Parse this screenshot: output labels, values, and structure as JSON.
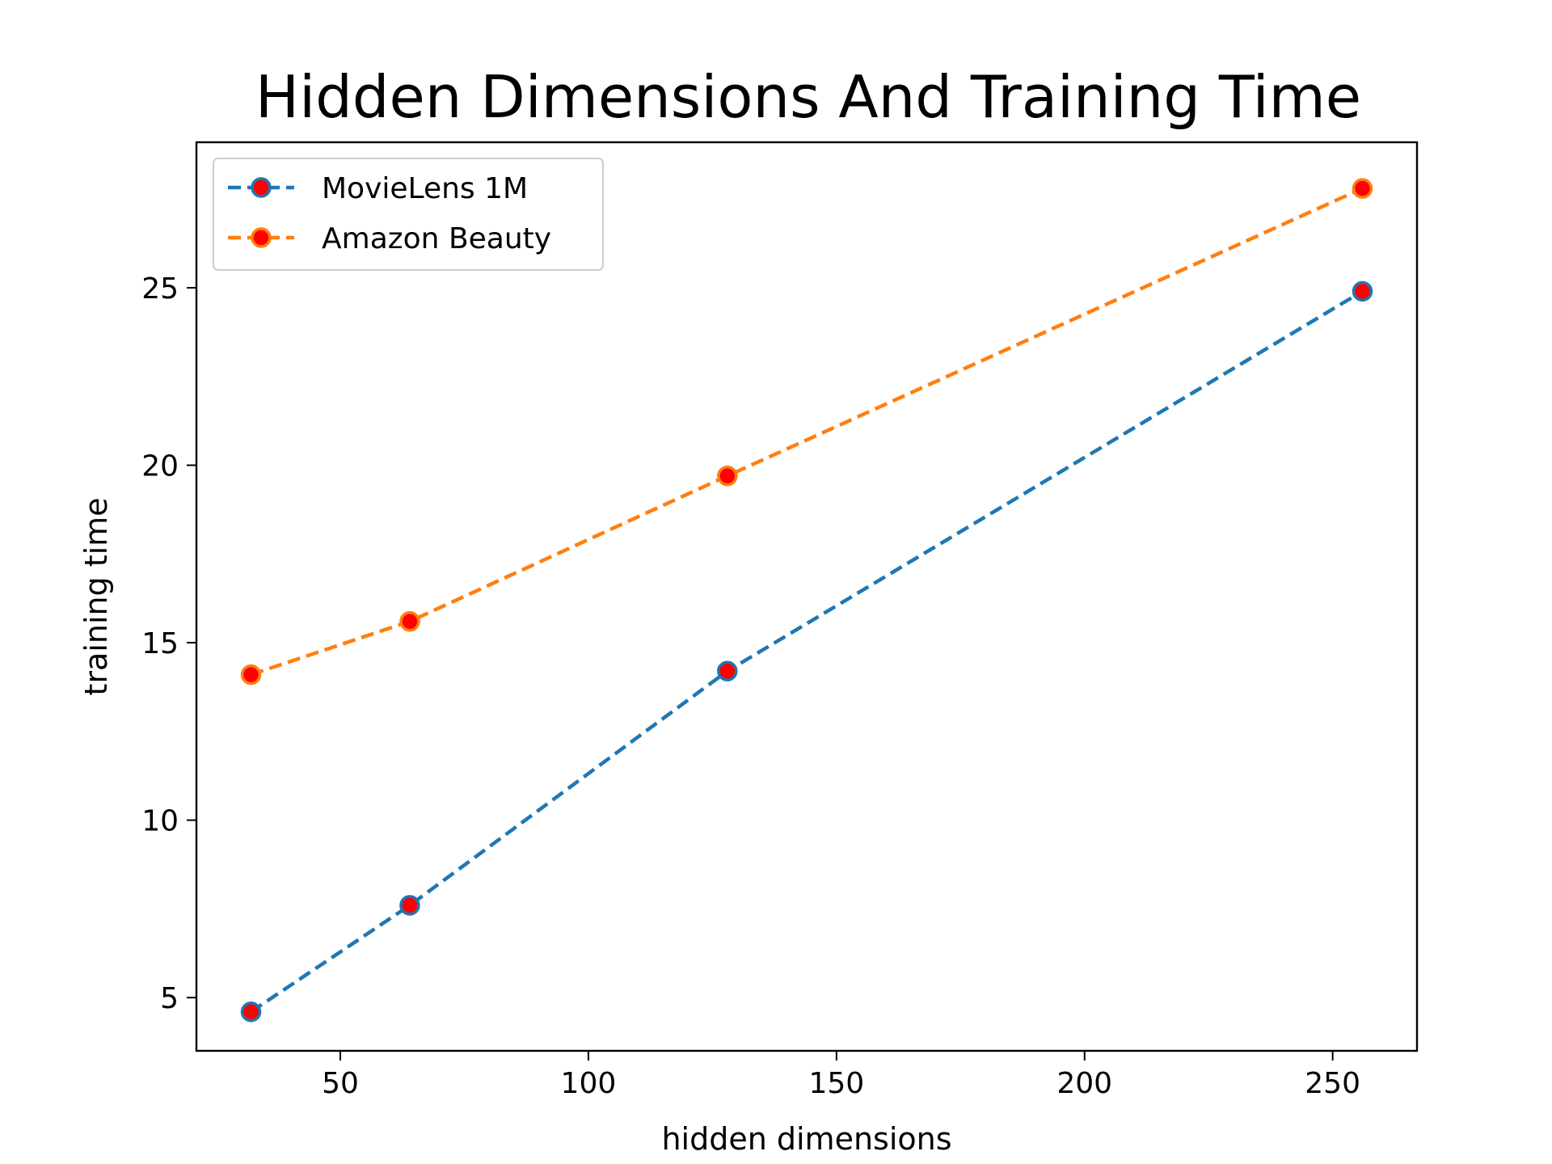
{
  "chart_data": {
    "type": "line",
    "title": "Hidden Dimensions And Training Time",
    "xlabel": "hidden dimensions",
    "ylabel": "training time",
    "x": [
      32,
      64,
      128,
      256
    ],
    "xlim": [
      21,
      267
    ],
    "ylim": [
      3.5,
      29.1
    ],
    "xticks": [
      50,
      100,
      150,
      200,
      250
    ],
    "yticks": [
      5,
      10,
      15,
      20,
      25
    ],
    "grid": false,
    "legend_position": "upper-left",
    "marker_face_color": "#ff0000",
    "series": [
      {
        "name": "MovieLens 1M",
        "color": "#1f77b4",
        "line_style": "dashed",
        "values": [
          4.6,
          7.6,
          14.2,
          24.9
        ]
      },
      {
        "name": "Amazon Beauty",
        "color": "#ff7f0e",
        "line_style": "dashed",
        "values": [
          14.1,
          15.6,
          19.7,
          27.8
        ]
      }
    ]
  }
}
